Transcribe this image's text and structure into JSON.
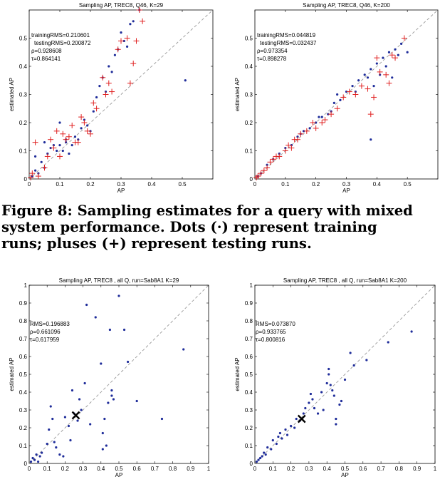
{
  "caption": {
    "lines": [
      "Figure 8:  Sampling estimates for a query with mixed",
      "system  performance.   Dots  (·)  represent  training",
      "runs; pluses (+) represent testing runs."
    ]
  },
  "chart_data": [
    {
      "type": "scatter",
      "title": "Sampling AP, TREC8, Q46, K=29",
      "xlabel": "AP",
      "ylabel": "estimated AP",
      "xlim": [
        0,
        0.6
      ],
      "ylim": [
        0,
        0.6
      ],
      "xticks": [
        "0",
        "0.1",
        "0.2",
        "0.3",
        "0.4",
        "0.5"
      ],
      "yticks": [
        "0",
        "0.1",
        "0.2",
        "0.3",
        "0.4",
        "0.5"
      ],
      "annotations": [
        "trainingRMS=0.210601",
        "testingRMS=0.200872",
        "ρ=0.928608",
        "τ=0.864141"
      ],
      "series": [
        {
          "marker": "dot",
          "color": "#1f2d9a",
          "points": [
            [
              0.01,
              0.01
            ],
            [
              0.02,
              0.03
            ],
            [
              0.02,
              0.08
            ],
            [
              0.03,
              0.02
            ],
            [
              0.04,
              0.06
            ],
            [
              0.05,
              0.04
            ],
            [
              0.06,
              0.09
            ],
            [
              0.07,
              0.11
            ],
            [
              0.08,
              0.12
            ],
            [
              0.09,
              0.1
            ],
            [
              0.1,
              0.12
            ],
            [
              0.11,
              0.1
            ],
            [
              0.12,
              0.13
            ],
            [
              0.13,
              0.09
            ],
            [
              0.14,
              0.12
            ],
            [
              0.15,
              0.15
            ],
            [
              0.16,
              0.14
            ],
            [
              0.17,
              0.18
            ],
            [
              0.18,
              0.21
            ],
            [
              0.19,
              0.19
            ],
            [
              0.2,
              0.17
            ],
            [
              0.21,
              0.24
            ],
            [
              0.22,
              0.29
            ],
            [
              0.23,
              0.33
            ],
            [
              0.24,
              0.36
            ],
            [
              0.25,
              0.31
            ],
            [
              0.26,
              0.4
            ],
            [
              0.27,
              0.38
            ],
            [
              0.28,
              0.44
            ],
            [
              0.29,
              0.46
            ],
            [
              0.3,
              0.52
            ],
            [
              0.31,
              0.49
            ],
            [
              0.32,
              0.47
            ],
            [
              0.33,
              0.55
            ],
            [
              0.34,
              0.56
            ],
            [
              0.36,
              0.6
            ],
            [
              0.51,
              0.35
            ],
            [
              0.05,
              0.13
            ],
            [
              0.1,
              0.2
            ],
            [
              0.12,
              0.14
            ]
          ]
        },
        {
          "marker": "plus",
          "color": "#e02020",
          "points": [
            [
              0.005,
              0.005
            ],
            [
              0.01,
              0.02
            ],
            [
              0.02,
              0.13
            ],
            [
              0.03,
              0.01
            ],
            [
              0.05,
              0.04
            ],
            [
              0.06,
              0.08
            ],
            [
              0.07,
              0.14
            ],
            [
              0.08,
              0.11
            ],
            [
              0.09,
              0.17
            ],
            [
              0.1,
              0.08
            ],
            [
              0.11,
              0.16
            ],
            [
              0.12,
              0.14
            ],
            [
              0.13,
              0.15
            ],
            [
              0.14,
              0.19
            ],
            [
              0.15,
              0.13
            ],
            [
              0.16,
              0.13
            ],
            [
              0.17,
              0.22
            ],
            [
              0.18,
              0.2
            ],
            [
              0.19,
              0.17
            ],
            [
              0.2,
              0.16
            ],
            [
              0.21,
              0.27
            ],
            [
              0.22,
              0.25
            ],
            [
              0.24,
              0.36
            ],
            [
              0.25,
              0.3
            ],
            [
              0.26,
              0.34
            ],
            [
              0.27,
              0.31
            ],
            [
              0.29,
              0.46
            ],
            [
              0.3,
              0.49
            ],
            [
              0.32,
              0.5
            ],
            [
              0.33,
              0.34
            ],
            [
              0.34,
              0.41
            ],
            [
              0.35,
              0.49
            ],
            [
              0.36,
              0.6
            ],
            [
              0.37,
              0.56
            ]
          ]
        }
      ]
    },
    {
      "type": "scatter",
      "title": "Sampling AP, TREC8, Q46, K=200",
      "xlabel": "AP",
      "ylabel": "estimated AP",
      "xlim": [
        0,
        0.6
      ],
      "ylim": [
        0,
        0.6
      ],
      "xticks": [
        "0",
        "0.1",
        "0.2",
        "0.3",
        "0.4",
        "0.5"
      ],
      "yticks": [
        "0",
        "0.1",
        "0.2",
        "0.3",
        "0.4",
        "0.5"
      ],
      "annotations": [
        "trainingRMS=0.044819",
        "testingRMS=0.032437",
        "ρ=0.973354",
        "τ=0.898278"
      ],
      "series": [
        {
          "marker": "dot",
          "color": "#1f2d9a",
          "points": [
            [
              0.01,
              0.01
            ],
            [
              0.02,
              0.02
            ],
            [
              0.04,
              0.05
            ],
            [
              0.06,
              0.07
            ],
            [
              0.08,
              0.09
            ],
            [
              0.1,
              0.11
            ],
            [
              0.12,
              0.12
            ],
            [
              0.14,
              0.15
            ],
            [
              0.16,
              0.17
            ],
            [
              0.18,
              0.18
            ],
            [
              0.2,
              0.2
            ],
            [
              0.22,
              0.22
            ],
            [
              0.24,
              0.23
            ],
            [
              0.26,
              0.27
            ],
            [
              0.28,
              0.28
            ],
            [
              0.3,
              0.31
            ],
            [
              0.32,
              0.33
            ],
            [
              0.34,
              0.35
            ],
            [
              0.36,
              0.37
            ],
            [
              0.38,
              0.39
            ],
            [
              0.4,
              0.41
            ],
            [
              0.42,
              0.43
            ],
            [
              0.44,
              0.45
            ],
            [
              0.46,
              0.46
            ],
            [
              0.48,
              0.48
            ],
            [
              0.25,
              0.24
            ],
            [
              0.27,
              0.3
            ],
            [
              0.33,
              0.31
            ],
            [
              0.37,
              0.36
            ],
            [
              0.39,
              0.33
            ],
            [
              0.41,
              0.37
            ],
            [
              0.43,
              0.4
            ],
            [
              0.45,
              0.36
            ],
            [
              0.47,
              0.44
            ],
            [
              0.5,
              0.45
            ],
            [
              0.38,
              0.14
            ],
            [
              0.15,
              0.16
            ],
            [
              0.21,
              0.22
            ]
          ]
        },
        {
          "marker": "plus",
          "color": "#e02020",
          "points": [
            [
              0.005,
              0.005
            ],
            [
              0.01,
              0.01
            ],
            [
              0.02,
              0.02
            ],
            [
              0.03,
              0.03
            ],
            [
              0.04,
              0.04
            ],
            [
              0.05,
              0.06
            ],
            [
              0.06,
              0.07
            ],
            [
              0.07,
              0.08
            ],
            [
              0.08,
              0.08
            ],
            [
              0.1,
              0.1
            ],
            [
              0.12,
              0.11
            ],
            [
              0.14,
              0.14
            ],
            [
              0.15,
              0.16
            ],
            [
              0.17,
              0.17
            ],
            [
              0.19,
              0.2
            ],
            [
              0.2,
              0.18
            ],
            [
              0.22,
              0.2
            ],
            [
              0.23,
              0.21
            ],
            [
              0.25,
              0.23
            ],
            [
              0.27,
              0.25
            ],
            [
              0.29,
              0.29
            ],
            [
              0.31,
              0.31
            ],
            [
              0.33,
              0.3
            ],
            [
              0.35,
              0.33
            ],
            [
              0.37,
              0.32
            ],
            [
              0.38,
              0.23
            ],
            [
              0.39,
              0.29
            ],
            [
              0.4,
              0.43
            ],
            [
              0.41,
              0.38
            ],
            [
              0.43,
              0.37
            ],
            [
              0.44,
              0.34
            ],
            [
              0.45,
              0.44
            ],
            [
              0.46,
              0.43
            ],
            [
              0.49,
              0.5
            ],
            [
              0.11,
              0.12
            ],
            [
              0.13,
              0.14
            ]
          ]
        }
      ]
    },
    {
      "type": "scatter",
      "title": "Sampling AP, TREC8 , all Q,  run=Sab8A1  K=29",
      "xlabel": "AP",
      "ylabel": "estimated AP",
      "xlim": [
        0,
        1
      ],
      "ylim": [
        0,
        1
      ],
      "xticks": [
        "0",
        "0.1",
        "0.2",
        "0.3",
        "0.4",
        "0.5",
        "0.6",
        "0.7",
        "0.8",
        "0.9",
        "1"
      ],
      "yticks": [
        "0",
        "0.1",
        "0.2",
        "0.3",
        "0.4",
        "0.5",
        "0.6",
        "0.7",
        "0.8",
        "0.9",
        "1"
      ],
      "annotations": [
        "RMS=0.196883",
        "ρ=0.661096",
        "τ=0.617959"
      ],
      "mean_marker": [
        0.26,
        0.27
      ],
      "series": [
        {
          "marker": "dot",
          "color": "#1f2d9a",
          "points": [
            [
              0.01,
              0.01
            ],
            [
              0.02,
              0.03
            ],
            [
              0.03,
              0.02
            ],
            [
              0.04,
              0.05
            ],
            [
              0.05,
              0.01
            ],
            [
              0.06,
              0.04
            ],
            [
              0.07,
              0.06
            ],
            [
              0.1,
              0.11
            ],
            [
              0.11,
              0.19
            ],
            [
              0.12,
              0.32
            ],
            [
              0.13,
              0.25
            ],
            [
              0.14,
              0.12
            ],
            [
              0.15,
              0.09
            ],
            [
              0.17,
              0.05
            ],
            [
              0.19,
              0.04
            ],
            [
              0.2,
              0.26
            ],
            [
              0.22,
              0.21
            ],
            [
              0.23,
              0.13
            ],
            [
              0.24,
              0.41
            ],
            [
              0.25,
              0.28
            ],
            [
              0.27,
              0.24
            ],
            [
              0.28,
              0.36
            ],
            [
              0.29,
              0.3
            ],
            [
              0.31,
              0.45
            ],
            [
              0.32,
              0.89
            ],
            [
              0.34,
              0.22
            ],
            [
              0.37,
              0.82
            ],
            [
              0.4,
              0.56
            ],
            [
              0.41,
              0.17
            ],
            [
              0.42,
              0.25
            ],
            [
              0.43,
              0.1
            ],
            [
              0.44,
              0.34
            ],
            [
              0.45,
              0.75
            ],
            [
              0.46,
              0.41
            ],
            [
              0.47,
              0.36
            ],
            [
              0.5,
              0.94
            ],
            [
              0.53,
              0.75
            ],
            [
              0.55,
              0.57
            ],
            [
              0.6,
              0.35
            ],
            [
              0.74,
              0.25
            ],
            [
              0.86,
              0.64
            ],
            [
              0.41,
              0.08
            ],
            [
              0.46,
              0.38
            ]
          ]
        }
      ]
    },
    {
      "type": "scatter",
      "title": "Sampling AP, TREC8 , all Q,  run=Sab8A1  K=200",
      "xlabel": "AP",
      "ylabel": "estimated AP",
      "xlim": [
        0,
        1
      ],
      "ylim": [
        0,
        1
      ],
      "xticks": [
        "0",
        "0.1",
        "0.2",
        "0.3",
        "0.4",
        "0.5",
        "0.6",
        "0.7",
        "0.8",
        "0.9",
        "1"
      ],
      "yticks": [
        "0",
        "0.1",
        "0.2",
        "0.3",
        "0.4",
        "0.5",
        "0.6",
        "0.7",
        "0.8",
        "0.9",
        "1"
      ],
      "annotations": [
        "RMS=0.073870",
        "ρ=0.933765",
        "τ=0.800816"
      ],
      "mean_marker": [
        0.26,
        0.25
      ],
      "series": [
        {
          "marker": "dot",
          "color": "#1f2d9a",
          "points": [
            [
              0.01,
              0.01
            ],
            [
              0.02,
              0.02
            ],
            [
              0.03,
              0.03
            ],
            [
              0.04,
              0.04
            ],
            [
              0.05,
              0.06
            ],
            [
              0.06,
              0.05
            ],
            [
              0.07,
              0.09
            ],
            [
              0.09,
              0.08
            ],
            [
              0.1,
              0.13
            ],
            [
              0.12,
              0.11
            ],
            [
              0.13,
              0.15
            ],
            [
              0.14,
              0.17
            ],
            [
              0.15,
              0.14
            ],
            [
              0.17,
              0.19
            ],
            [
              0.18,
              0.16
            ],
            [
              0.2,
              0.21
            ],
            [
              0.22,
              0.2
            ],
            [
              0.23,
              0.25
            ],
            [
              0.25,
              0.24
            ],
            [
              0.27,
              0.28
            ],
            [
              0.28,
              0.31
            ],
            [
              0.3,
              0.34
            ],
            [
              0.31,
              0.39
            ],
            [
              0.32,
              0.36
            ],
            [
              0.33,
              0.31
            ],
            [
              0.35,
              0.28
            ],
            [
              0.37,
              0.4
            ],
            [
              0.38,
              0.3
            ],
            [
              0.4,
              0.45
            ],
            [
              0.41,
              0.53
            ],
            [
              0.42,
              0.44
            ],
            [
              0.43,
              0.41
            ],
            [
              0.44,
              0.38
            ],
            [
              0.45,
              0.25
            ],
            [
              0.47,
              0.33
            ],
            [
              0.48,
              0.35
            ],
            [
              0.5,
              0.47
            ],
            [
              0.53,
              0.62
            ],
            [
              0.55,
              0.55
            ],
            [
              0.62,
              0.58
            ],
            [
              0.74,
              0.68
            ],
            [
              0.87,
              0.74
            ],
            [
              0.41,
              0.5
            ],
            [
              0.45,
              0.22
            ]
          ]
        }
      ]
    }
  ]
}
